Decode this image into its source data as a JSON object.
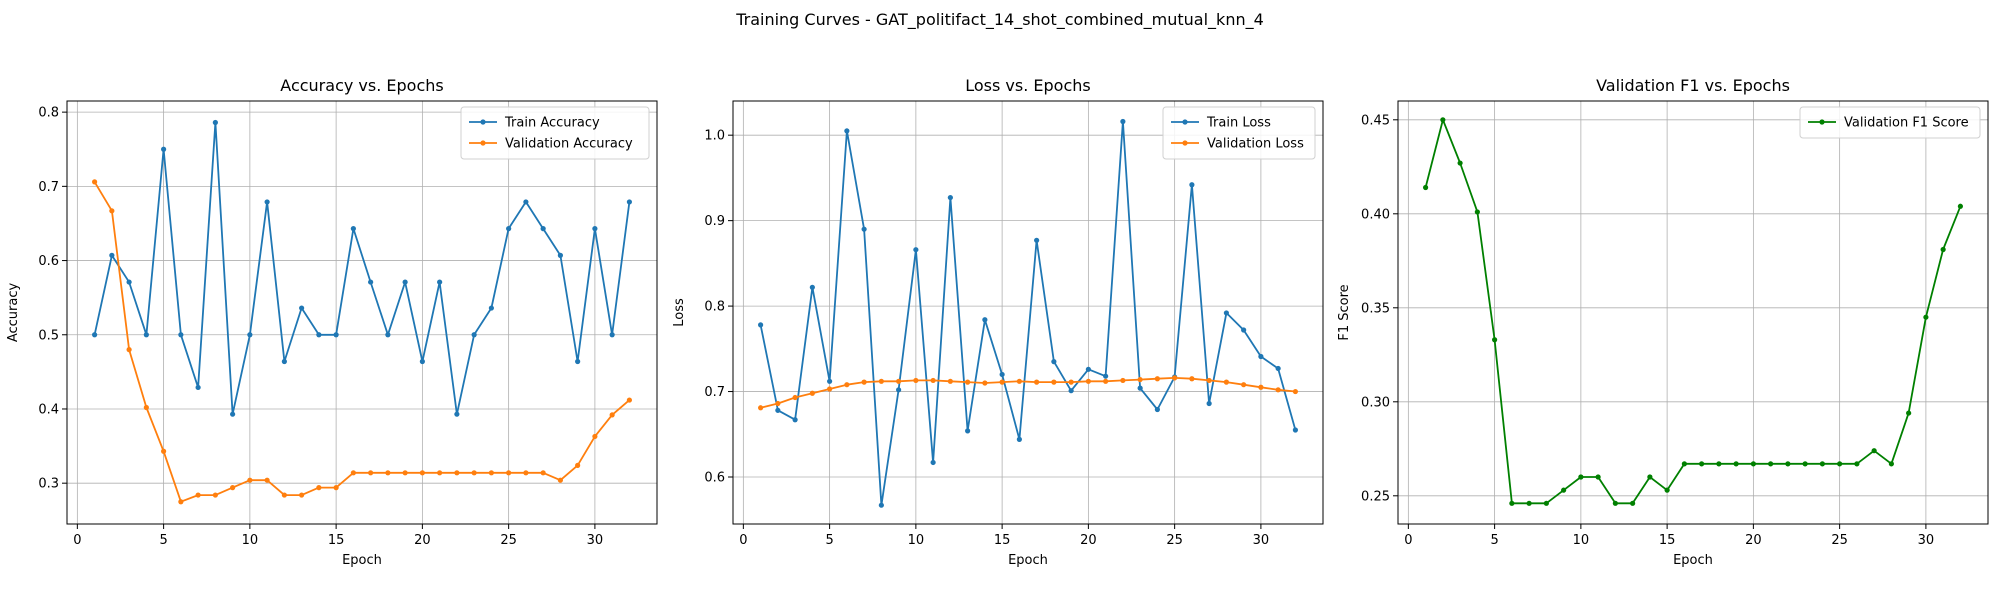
{
  "suptitle": "Training Curves - GAT_politifact_14_shot_combined_mutual_knn_4",
  "chart_data": [
    {
      "type": "line",
      "title": "Accuracy vs. Epochs",
      "xlabel": "Epoch",
      "ylabel": "Accuracy",
      "xlim": [
        -0.6,
        33.6
      ],
      "ylim": [
        0.245,
        0.815
      ],
      "xticks": [
        0,
        5,
        10,
        15,
        20,
        25,
        30
      ],
      "yticks": [
        0.3,
        0.4,
        0.5,
        0.6,
        0.7,
        0.8
      ],
      "ytick_decimals": 1,
      "grid": true,
      "legend_position": "top-right",
      "x": [
        1,
        2,
        3,
        4,
        5,
        6,
        7,
        8,
        9,
        10,
        11,
        12,
        13,
        14,
        15,
        16,
        17,
        18,
        19,
        20,
        21,
        22,
        23,
        24,
        25,
        26,
        27,
        28,
        29,
        30,
        31,
        32
      ],
      "series": [
        {
          "name": "Train Accuracy",
          "color": "#1f77b4",
          "values": [
            0.5,
            0.607,
            0.571,
            0.5,
            0.75,
            0.5,
            0.429,
            0.786,
            0.393,
            0.5,
            0.679,
            0.464,
            0.536,
            0.5,
            0.5,
            0.643,
            0.571,
            0.5,
            0.571,
            0.464,
            0.571,
            0.393,
            0.5,
            0.536,
            0.643,
            0.679,
            0.643,
            0.607,
            0.464,
            0.643,
            0.5,
            0.679
          ]
        },
        {
          "name": "Validation Accuracy",
          "color": "#ff7f0e",
          "values": [
            0.706,
            0.667,
            0.48,
            0.402,
            0.343,
            0.275,
            0.284,
            0.284,
            0.294,
            0.304,
            0.304,
            0.284,
            0.284,
            0.294,
            0.294,
            0.314,
            0.314,
            0.314,
            0.314,
            0.314,
            0.314,
            0.314,
            0.314,
            0.314,
            0.314,
            0.314,
            0.314,
            0.304,
            0.324,
            0.363,
            0.392,
            0.412
          ]
        }
      ]
    },
    {
      "type": "line",
      "title": "Loss vs. Epochs",
      "xlabel": "Epoch",
      "ylabel": "Loss",
      "xlim": [
        -0.6,
        33.6
      ],
      "ylim": [
        0.545,
        1.04
      ],
      "xticks": [
        0,
        5,
        10,
        15,
        20,
        25,
        30
      ],
      "yticks": [
        0.6,
        0.7,
        0.8,
        0.9,
        1.0
      ],
      "ytick_decimals": 1,
      "grid": true,
      "legend_position": "top-right",
      "x": [
        1,
        2,
        3,
        4,
        5,
        6,
        7,
        8,
        9,
        10,
        11,
        12,
        13,
        14,
        15,
        16,
        17,
        18,
        19,
        20,
        21,
        22,
        23,
        24,
        25,
        26,
        27,
        28,
        29,
        30,
        31,
        32
      ],
      "series": [
        {
          "name": "Train Loss",
          "color": "#1f77b4",
          "values": [
            0.778,
            0.678,
            0.667,
            0.822,
            0.712,
            1.005,
            0.89,
            0.567,
            0.702,
            0.866,
            0.617,
            0.927,
            0.654,
            0.784,
            0.72,
            0.644,
            0.877,
            0.735,
            0.701,
            0.726,
            0.718,
            1.016,
            0.704,
            0.679,
            0.717,
            0.942,
            0.686,
            0.792,
            0.772,
            0.741,
            0.727,
            0.655
          ]
        },
        {
          "name": "Validation Loss",
          "color": "#ff7f0e",
          "values": [
            0.681,
            0.686,
            0.693,
            0.698,
            0.703,
            0.708,
            0.711,
            0.712,
            0.712,
            0.713,
            0.713,
            0.712,
            0.711,
            0.71,
            0.711,
            0.712,
            0.711,
            0.711,
            0.711,
            0.712,
            0.712,
            0.713,
            0.714,
            0.715,
            0.716,
            0.715,
            0.713,
            0.711,
            0.708,
            0.705,
            0.702,
            0.7
          ]
        }
      ]
    },
    {
      "type": "line",
      "title": "Validation F1 vs. Epochs",
      "xlabel": "Epoch",
      "ylabel": "F1 Score",
      "xlim": [
        -0.6,
        33.6
      ],
      "ylim": [
        0.235,
        0.46
      ],
      "xticks": [
        0,
        5,
        10,
        15,
        20,
        25,
        30
      ],
      "yticks": [
        0.25,
        0.3,
        0.35,
        0.4,
        0.45
      ],
      "ytick_decimals": 2,
      "grid": true,
      "legend_position": "top-right",
      "x": [
        1,
        2,
        3,
        4,
        5,
        6,
        7,
        8,
        9,
        10,
        11,
        12,
        13,
        14,
        15,
        16,
        17,
        18,
        19,
        20,
        21,
        22,
        23,
        24,
        25,
        26,
        27,
        28,
        29,
        30,
        31,
        32
      ],
      "series": [
        {
          "name": "Validation F1 Score",
          "color": "#008000",
          "values": [
            0.414,
            0.45,
            0.427,
            0.401,
            0.333,
            0.246,
            0.246,
            0.246,
            0.253,
            0.26,
            0.26,
            0.246,
            0.246,
            0.26,
            0.253,
            0.267,
            0.267,
            0.267,
            0.267,
            0.267,
            0.267,
            0.267,
            0.267,
            0.267,
            0.267,
            0.267,
            0.274,
            0.267,
            0.294,
            0.345,
            0.381,
            0.404
          ]
        }
      ]
    }
  ]
}
